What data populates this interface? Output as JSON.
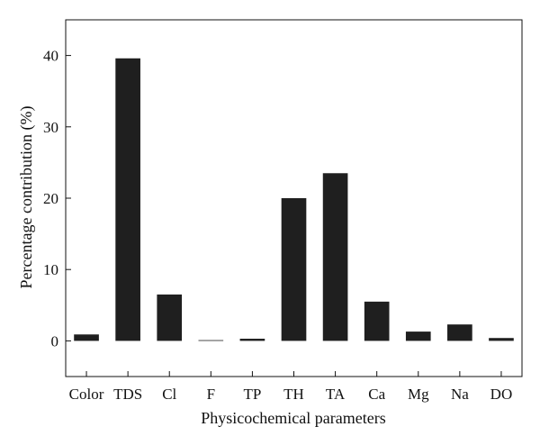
{
  "chart_data": {
    "type": "bar",
    "categories": [
      "Color",
      "TDS",
      "Cl",
      "F",
      "TP",
      "TH",
      "TA",
      "Ca",
      "Mg",
      "Na",
      "DO"
    ],
    "values": [
      0.9,
      39.6,
      6.5,
      0.1,
      0.3,
      20.0,
      23.5,
      5.5,
      1.3,
      2.3,
      0.4
    ],
    "title": "",
    "xlabel": "Physicochemical parameters",
    "ylabel": "Percentage contribution (%)",
    "ylim": [
      -5,
      45
    ],
    "yticks": [
      0,
      10,
      20,
      30,
      40
    ],
    "grid": false,
    "bar_color": "#1f1f1f"
  }
}
